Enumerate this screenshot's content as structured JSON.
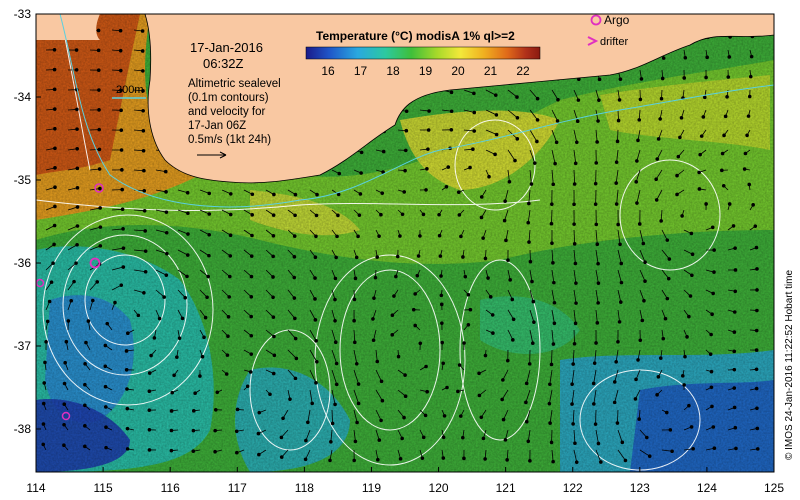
{
  "map": {
    "date": "17-Jan-2016",
    "time": "06:32Z",
    "legend_title": "Temperature (°C) modisA 1% ql>=2",
    "colorbar_ticks": [
      "16",
      "17",
      "18",
      "19",
      "20",
      "21",
      "22"
    ],
    "colorbar_colors": [
      "#1a1a8a",
      "#1f56c8",
      "#2aa8e0",
      "#2cc9a0",
      "#3fbf3a",
      "#a7d92a",
      "#f3e83a",
      "#f0b020",
      "#e06a1a",
      "#b0301a",
      "#8a1a10"
    ],
    "contour_label": "200m",
    "annotation": {
      "line1": "Altimetric sealevel",
      "line2": "(0.1m contours)",
      "line3": "and velocity for",
      "line4": "17-Jan 06Z",
      "line5": "0.5m/s (1kt 24h)"
    },
    "symbols": {
      "argo": "Argo",
      "drifter": "drifter"
    },
    "credit": "© IMOS 24-Jan-2016 11:22:52 Hobart time",
    "x_ticks": [
      "114",
      "115",
      "116",
      "117",
      "118",
      "119",
      "120",
      "121",
      "122",
      "123",
      "124",
      "125"
    ],
    "y_ticks": [
      "-33",
      "-34",
      "-35",
      "-36",
      "-37",
      "-38"
    ],
    "land_color": "#f9c8a2",
    "argo_color": "#e030c0"
  }
}
